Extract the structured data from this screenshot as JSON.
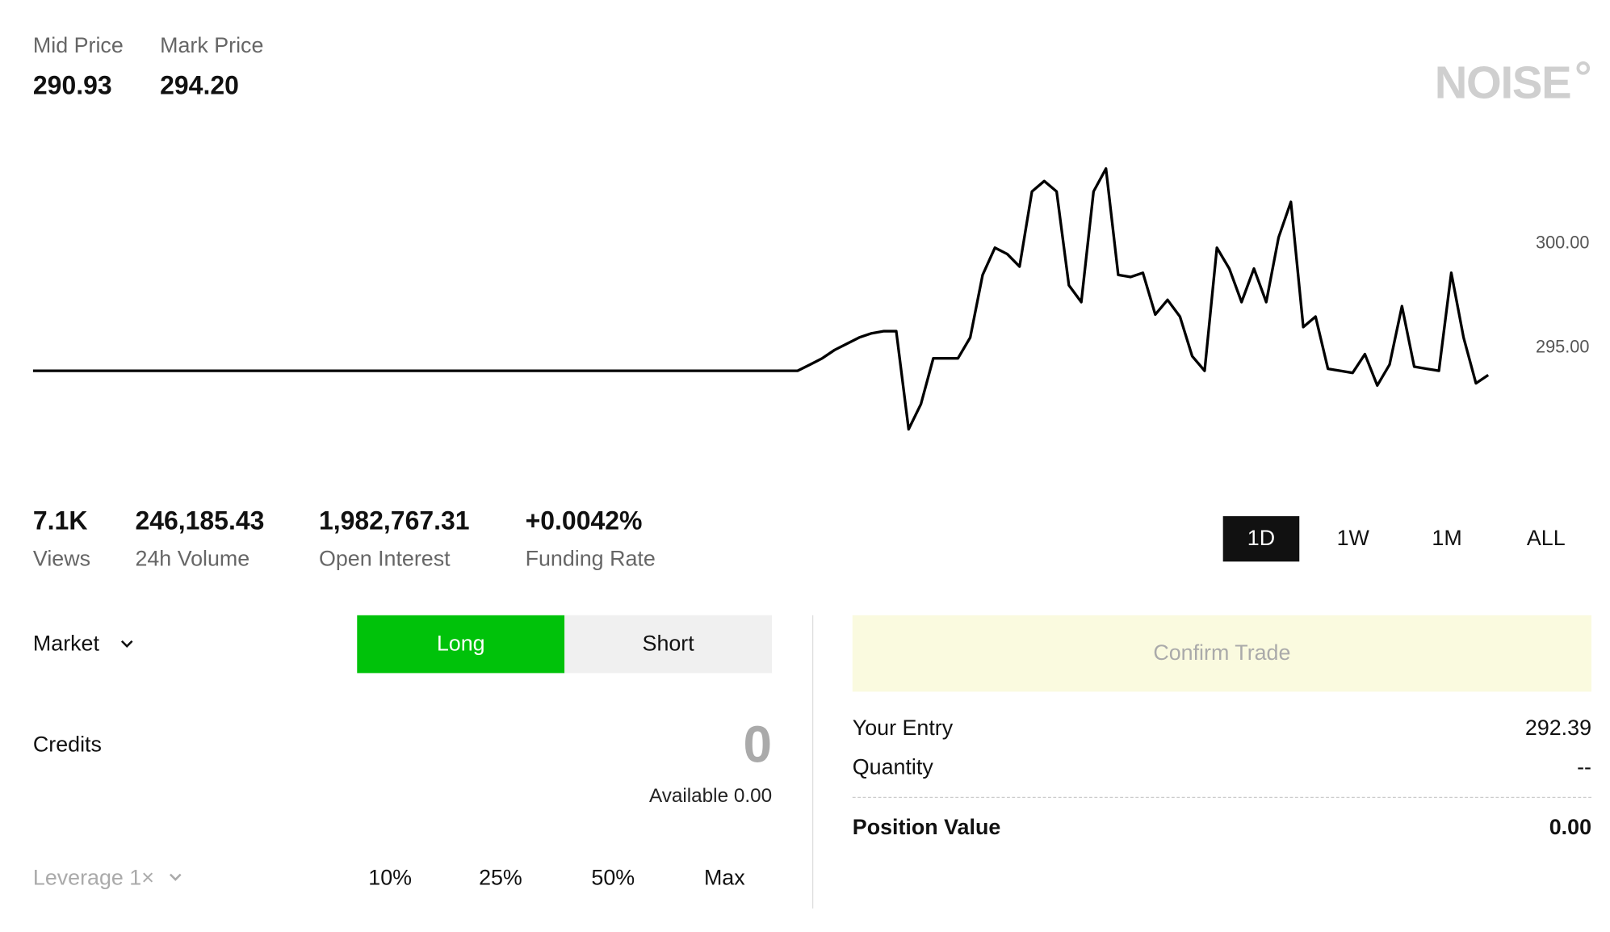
{
  "header": {
    "mid_price": {
      "label": "Mid Price",
      "value": "290.93"
    },
    "mark_price": {
      "label": "Mark Price",
      "value": "294.20"
    },
    "logo": "NOISE"
  },
  "chart_data": {
    "type": "line",
    "color": "#000000",
    "ylim": [
      290,
      305
    ],
    "yticks": [
      {
        "value": 295,
        "label": "295.00"
      },
      {
        "value": 300,
        "label": "300.00"
      }
    ],
    "values": [
      293.9,
      293.9,
      293.9,
      293.9,
      293.9,
      293.9,
      293.9,
      293.9,
      293.9,
      293.9,
      293.9,
      293.9,
      293.9,
      293.9,
      293.9,
      293.9,
      293.9,
      293.9,
      293.9,
      293.9,
      293.9,
      293.9,
      293.9,
      293.9,
      293.9,
      293.9,
      293.9,
      293.9,
      293.9,
      293.9,
      293.9,
      293.9,
      293.9,
      293.9,
      293.9,
      293.9,
      293.9,
      293.9,
      293.9,
      293.9,
      293.9,
      293.9,
      293.9,
      293.9,
      293.9,
      293.9,
      293.9,
      293.9,
      293.9,
      293.9,
      293.9,
      293.9,
      293.9,
      293.9,
      293.9,
      293.9,
      293.9,
      293.9,
      293.9,
      293.9,
      293.9,
      293.9,
      293.9,
      294.2,
      294.5,
      294.9,
      295.2,
      295.5,
      295.7,
      295.8,
      295.8,
      291.1,
      292.3,
      294.5,
      294.5,
      294.5,
      295.5,
      298.5,
      299.8,
      299.5,
      298.9,
      302.5,
      303.0,
      302.5,
      298.0,
      297.2,
      302.5,
      303.6,
      298.5,
      298.4,
      298.6,
      296.6,
      297.3,
      296.5,
      294.6,
      293.9,
      299.8,
      298.8,
      297.2,
      298.8,
      297.2,
      300.3,
      302.0,
      296.0,
      296.5,
      294.0,
      293.9,
      293.8,
      294.7,
      293.2,
      294.2,
      297.0,
      294.1,
      294.0,
      293.9,
      298.6,
      295.5,
      293.3,
      293.7
    ]
  },
  "stats": [
    {
      "value": "7.1K",
      "label": "Views"
    },
    {
      "value": "246,185.43",
      "label": "24h Volume"
    },
    {
      "value": "1,982,767.31",
      "label": "Open Interest"
    },
    {
      "value": "+0.0042%",
      "label": "Funding Rate"
    }
  ],
  "timeframes": [
    "1D",
    "1W",
    "1M",
    "ALL"
  ],
  "order": {
    "type": "Market",
    "sides": [
      "Long",
      "Short"
    ],
    "credits_label": "Credits",
    "credits_value": "0",
    "available": "Available 0.00",
    "leverage": "Leverage 1×",
    "amounts": [
      "10%",
      "25%",
      "50%",
      "Max"
    ]
  },
  "summary": {
    "confirm": "Confirm Trade",
    "your_entry": {
      "label": "Your Entry",
      "value": "292.39"
    },
    "quantity": {
      "label": "Quantity",
      "value": "--"
    },
    "position_value": {
      "label": "Position Value",
      "value": "0.00"
    }
  }
}
